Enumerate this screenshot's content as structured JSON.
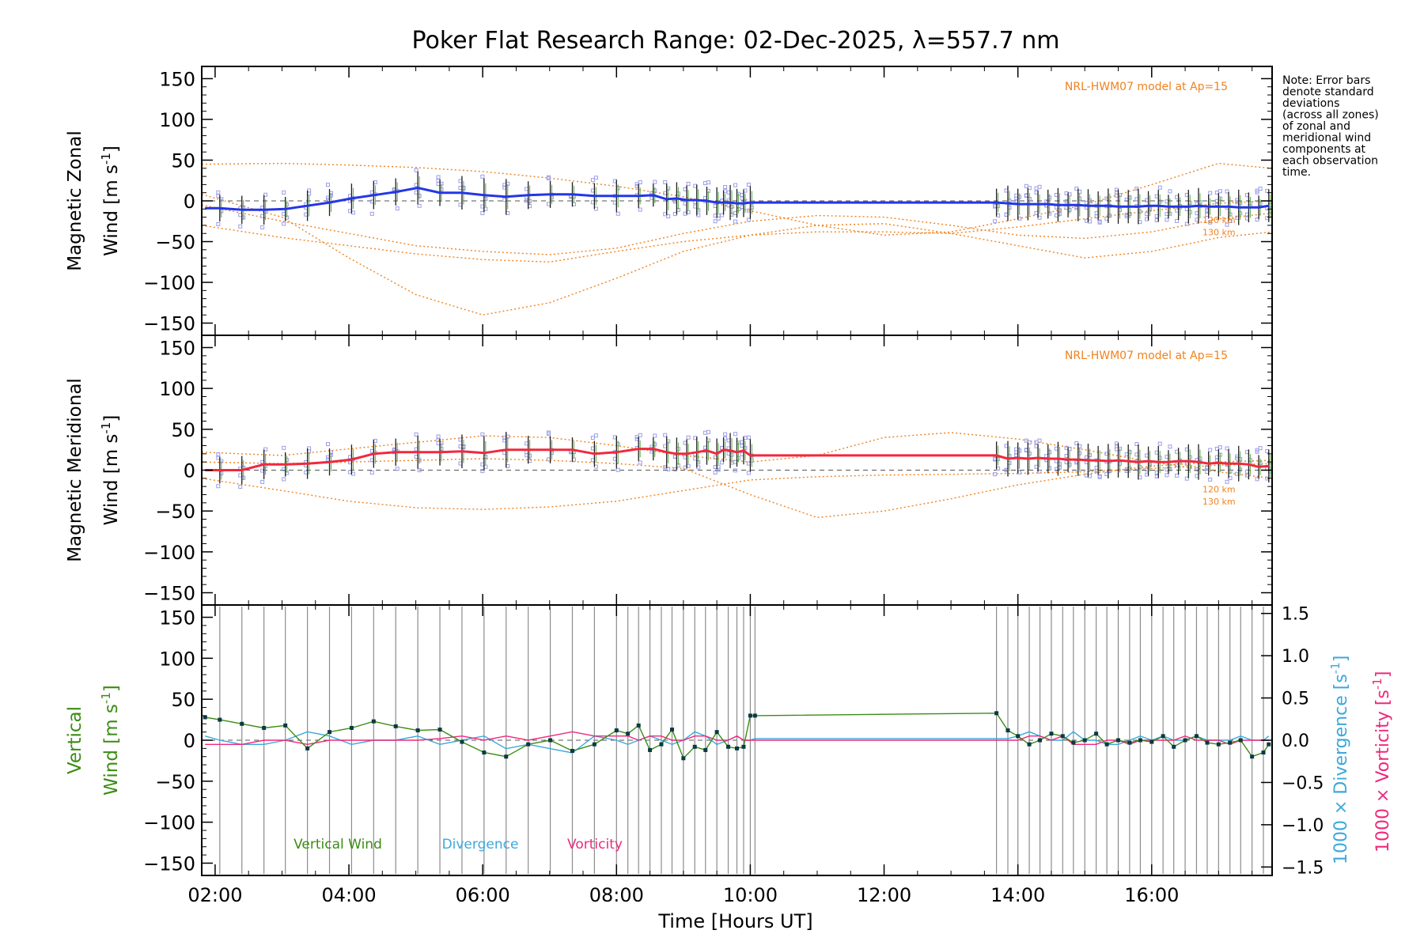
{
  "title": "Poker Flat Research Range: 02-Dec-2025, λ=557.7 nm",
  "note": [
    "Note: Error bars",
    "denote standard",
    "deviations",
    "(across all zones)",
    "of zonal and",
    "meridional wind",
    "components at",
    "each observation",
    "time."
  ],
  "colors": {
    "zonal": "#2436e6",
    "meridional": "#f2283c",
    "vertical": "#3c8c14",
    "divergence": "#3ca8dc",
    "vorticity": "#f0287c",
    "model": "#f0821e",
    "samples": "#9a9ee8",
    "errorbar": "#1e1e1e",
    "grid": "#8c8c8c"
  },
  "chart_data": [
    {
      "type": "line",
      "panel": "zonal",
      "ylabel_line1": "Magnetic Zonal",
      "ylabel_line2": "Wind [m s",
      "ylabel_sup": "-1",
      "ylabel_close": "]",
      "xlim": [
        1.8,
        17.8
      ],
      "ylim": [
        -165,
        165
      ],
      "yticks": [
        150,
        100,
        50,
        0,
        -50,
        -100,
        -150
      ],
      "model_label": "NRL-HWM07 model at Ap=15",
      "model_alt_labels": [
        "120 km",
        "130 km"
      ],
      "x": [
        1.85,
        2.07,
        2.4,
        2.73,
        3.05,
        3.38,
        3.71,
        4.04,
        4.37,
        4.7,
        5.03,
        5.36,
        5.69,
        6.02,
        6.35,
        6.68,
        7.01,
        7.34,
        7.67,
        8.0,
        8.33,
        8.55,
        8.75,
        8.9,
        9.05,
        9.2,
        9.35,
        9.5,
        9.6,
        9.7,
        9.8,
        9.9,
        10.0,
        13.68,
        13.85,
        14.0,
        14.15,
        14.3,
        14.45,
        14.6,
        14.75,
        14.9,
        15.05,
        15.2,
        15.35,
        15.5,
        15.65,
        15.8,
        15.95,
        16.1,
        16.25,
        16.4,
        16.55,
        16.7,
        16.85,
        17.0,
        17.15,
        17.3,
        17.45,
        17.6,
        17.75
      ],
      "y": [
        -9,
        -9,
        -11,
        -11,
        -10,
        -6,
        -2,
        3,
        7,
        11,
        16,
        10,
        10,
        7,
        5,
        7,
        8,
        8,
        6,
        6,
        6,
        7,
        2,
        3,
        1,
        1,
        0,
        -2,
        -2,
        -2,
        -3,
        -3,
        -2,
        -2,
        -3,
        -4,
        -4,
        -4,
        -4,
        -5,
        -5,
        -5,
        -6,
        -6,
        -6,
        -7,
        -7,
        -7,
        -6,
        -6,
        -7,
        -7,
        -7,
        -6,
        -7,
        -7,
        -7,
        -8,
        -8,
        -8,
        -6
      ],
      "gap": [
        10.0,
        13.68
      ],
      "model_curves": [
        {
          "x": [
            1.8,
            3,
            4,
            5,
            6,
            7,
            8,
            9,
            10,
            11,
            12,
            13,
            14,
            15,
            16,
            17,
            17.8
          ],
          "y": [
            45,
            46,
            44,
            41,
            36,
            28,
            18,
            5,
            -12,
            -30,
            -42,
            -38,
            -22,
            -5,
            20,
            46,
            40
          ]
        },
        {
          "x": [
            1.8,
            3,
            4,
            5,
            6,
            7,
            8,
            9,
            10,
            11,
            12,
            13,
            14,
            15,
            16,
            17,
            17.8
          ],
          "y": [
            8,
            -20,
            -70,
            -115,
            -140,
            -125,
            -95,
            -62,
            -42,
            -30,
            -28,
            -40,
            -55,
            -70,
            -62,
            -45,
            -38
          ]
        },
        {
          "x": [
            1.8,
            3,
            4,
            5,
            6,
            7,
            8,
            9,
            10,
            11,
            12,
            13,
            14,
            15,
            16,
            17,
            17.8
          ],
          "y": [
            -30,
            -45,
            -55,
            -65,
            -72,
            -75,
            -62,
            -50,
            -42,
            -38,
            -38,
            -40,
            -32,
            -22,
            -12,
            -3,
            0
          ]
        },
        {
          "x": [
            1.8,
            3,
            4,
            5,
            6,
            7,
            8,
            9,
            10,
            11,
            12,
            13,
            14,
            15,
            16,
            17,
            17.8
          ],
          "y": [
            -5,
            -25,
            -40,
            -55,
            -62,
            -66,
            -58,
            -40,
            -25,
            -18,
            -20,
            -30,
            -42,
            -46,
            -38,
            -22,
            -15
          ]
        }
      ]
    },
    {
      "type": "line",
      "panel": "meridional",
      "ylabel_line1": "Magnetic Meridional",
      "ylabel_line2": "Wind [m s",
      "ylabel_sup": "-1",
      "ylabel_close": "]",
      "xlim": [
        1.8,
        17.8
      ],
      "ylim": [
        -165,
        165
      ],
      "yticks": [
        150,
        100,
        50,
        0,
        -50,
        -100,
        -150
      ],
      "model_label": "NRL-HWM07 model at Ap=15",
      "model_alt_labels": [
        "120 km",
        "130 km"
      ],
      "x": [
        1.85,
        2.07,
        2.4,
        2.73,
        3.05,
        3.38,
        3.71,
        4.04,
        4.37,
        4.7,
        5.03,
        5.36,
        5.69,
        6.02,
        6.35,
        6.68,
        7.01,
        7.34,
        7.67,
        8.0,
        8.33,
        8.55,
        8.75,
        8.9,
        9.05,
        9.2,
        9.35,
        9.5,
        9.6,
        9.7,
        9.8,
        9.9,
        10.0,
        13.68,
        13.85,
        14.0,
        14.15,
        14.3,
        14.45,
        14.6,
        14.75,
        14.9,
        15.05,
        15.2,
        15.35,
        15.5,
        15.65,
        15.8,
        15.95,
        16.1,
        16.25,
        16.4,
        16.55,
        16.7,
        16.85,
        17.0,
        17.15,
        17.3,
        17.45,
        17.6,
        17.75
      ],
      "y": [
        0,
        0,
        0,
        7,
        7,
        8,
        10,
        13,
        20,
        22,
        22,
        22,
        23,
        21,
        25,
        25,
        25,
        25,
        20,
        22,
        26,
        26,
        22,
        20,
        20,
        22,
        24,
        20,
        25,
        24,
        22,
        24,
        18,
        18,
        14,
        15,
        14,
        15,
        14,
        14,
        13,
        13,
        12,
        12,
        11,
        12,
        11,
        10,
        11,
        10,
        10,
        11,
        11,
        10,
        8,
        9,
        8,
        8,
        7,
        4,
        5
      ],
      "gap": [
        10.0,
        13.68
      ],
      "model_curves": [
        {
          "x": [
            1.8,
            3,
            4,
            5,
            6,
            7,
            8,
            9,
            10,
            11,
            12,
            13,
            14,
            15,
            16,
            17,
            17.8
          ],
          "y": [
            22,
            18,
            26,
            34,
            42,
            40,
            30,
            18,
            10,
            18,
            40,
            46,
            38,
            25,
            10,
            -2,
            -10
          ]
        },
        {
          "x": [
            1.8,
            3,
            4,
            5,
            6,
            7,
            8,
            9,
            10,
            11,
            12,
            13,
            14,
            15,
            16,
            17,
            17.8
          ],
          "y": [
            -10,
            -25,
            -38,
            -46,
            -48,
            -45,
            -38,
            -25,
            -12,
            -8,
            -6,
            -5,
            -4,
            -2,
            2,
            6,
            8
          ]
        },
        {
          "x": [
            1.8,
            3,
            4,
            5,
            6,
            7,
            8,
            9,
            10,
            11,
            12,
            13,
            14,
            15,
            16,
            17,
            17.8
          ],
          "y": [
            10,
            8,
            10,
            12,
            14,
            12,
            8,
            2,
            -30,
            -58,
            -50,
            -35,
            -18,
            -5,
            5,
            10,
            12
          ]
        }
      ]
    },
    {
      "type": "line",
      "panel": "vertical",
      "ylabel_line1": "Vertical",
      "ylabel_line2": "Wind [m s",
      "ylabel_sup": "-1",
      "ylabel_close": "]",
      "xlim": [
        1.8,
        17.8
      ],
      "ylim": [
        -165,
        165
      ],
      "yticks": [
        150,
        100,
        50,
        0,
        -50,
        -100,
        -150
      ],
      "y2lim": [
        -1.6,
        1.6
      ],
      "y2ticks": [
        1.5,
        1.0,
        0.5,
        0.0,
        -0.5,
        -1.0,
        -1.5
      ],
      "y2label_div": "1000 × Divergence [s",
      "y2label_vort": "1000 × Vorticity [s",
      "y2label_sup": "-1",
      "y2label_close": "]",
      "legend": [
        "Vertical Wind",
        "Divergence",
        "Vorticity"
      ],
      "xlabel": "Time [Hours UT]",
      "xtick_labels": [
        "02:00",
        "04:00",
        "06:00",
        "08:00",
        "10:00",
        "12:00",
        "14:00",
        "16:00"
      ],
      "xticks": [
        2,
        4,
        6,
        8,
        10,
        12,
        14,
        16
      ],
      "obs_times": [
        2.07,
        2.4,
        2.73,
        3.05,
        3.38,
        3.71,
        4.04,
        4.37,
        4.7,
        5.03,
        5.36,
        5.69,
        6.02,
        6.35,
        6.68,
        7.01,
        7.34,
        7.67,
        8.0,
        8.17,
        8.33,
        8.5,
        8.67,
        8.83,
        9.0,
        9.17,
        9.33,
        9.5,
        9.67,
        9.8,
        9.9,
        10.0,
        10.07,
        13.68,
        13.85,
        14.0,
        14.17,
        14.33,
        14.5,
        14.67,
        14.83,
        15.0,
        15.17,
        15.33,
        15.5,
        15.67,
        15.83,
        16.0,
        16.17,
        16.33,
        16.5,
        16.67,
        16.83,
        17.0,
        17.17,
        17.33,
        17.5,
        17.67
      ],
      "x": [
        1.85,
        2.07,
        2.4,
        2.73,
        3.05,
        3.38,
        3.71,
        4.04,
        4.37,
        4.7,
        5.03,
        5.36,
        5.69,
        6.02,
        6.35,
        6.68,
        7.01,
        7.34,
        7.67,
        8.0,
        8.17,
        8.33,
        8.5,
        8.67,
        8.83,
        9.0,
        9.17,
        9.33,
        9.5,
        9.67,
        9.8,
        9.9,
        10.0,
        10.07,
        13.68,
        13.85,
        14.0,
        14.17,
        14.33,
        14.5,
        14.67,
        14.83,
        15.0,
        15.17,
        15.33,
        15.5,
        15.67,
        15.83,
        16.0,
        16.17,
        16.33,
        16.5,
        16.67,
        16.83,
        17.0,
        17.17,
        17.33,
        17.5,
        17.67,
        17.75
      ],
      "y": [
        28,
        25,
        20,
        15,
        18,
        -10,
        10,
        15,
        23,
        17,
        12,
        13,
        -2,
        -15,
        -20,
        -5,
        0,
        -13,
        -5,
        12,
        8,
        18,
        -12,
        -5,
        13,
        -22,
        -8,
        -12,
        10,
        -8,
        -10,
        -8,
        30,
        30,
        33,
        12,
        5,
        -5,
        0,
        8,
        5,
        -3,
        0,
        8,
        -5,
        0,
        -3,
        0,
        -2,
        5,
        -8,
        0,
        5,
        -3,
        -5,
        -3,
        0,
        -20,
        -15,
        -5
      ],
      "divergence": [
        0.05,
        0.0,
        -0.05,
        -0.05,
        0.0,
        0.1,
        0.05,
        -0.05,
        0.0,
        0.0,
        0.05,
        -0.05,
        0.0,
        0.05,
        -0.1,
        -0.05,
        -0.1,
        -0.15,
        0.05,
        0.0,
        -0.05,
        0.0,
        0.05,
        0.0,
        -0.05,
        0.0,
        0.1,
        0.05,
        -0.05,
        0.0,
        0.05,
        0.0,
        0.0,
        0.02,
        0.02,
        0.02,
        0.05,
        0.1,
        0.05,
        0.0,
        0.0,
        0.1,
        0.0,
        0.0,
        -0.05,
        -0.05,
        0.0,
        0.05,
        0.0,
        0.05,
        0.0,
        0.0,
        0.05,
        0.0,
        0.0,
        0.0,
        0.05,
        0.0,
        0.0,
        0.05
      ],
      "vorticity": [
        -0.05,
        -0.05,
        -0.05,
        0.0,
        0.0,
        -0.05,
        0.0,
        0.0,
        0.0,
        0.0,
        0.0,
        0.02,
        0.05,
        0.0,
        0.05,
        0.0,
        0.05,
        0.1,
        0.05,
        0.05,
        0.05,
        0.0,
        0.05,
        0.05,
        0.0,
        0.0,
        0.05,
        0.05,
        0.0,
        0.0,
        0.05,
        0.0,
        0.0,
        0.0,
        0.0,
        0.0,
        0.0,
        0.05,
        0.05,
        0.0,
        0.05,
        -0.05,
        -0.05,
        -0.05,
        0.0,
        0.0,
        -0.05,
        0.0,
        0.0,
        0.0,
        0.0,
        0.05,
        0.0,
        0.0,
        0.0,
        -0.05,
        0.0,
        0.0,
        0.0,
        0.0
      ]
    }
  ]
}
